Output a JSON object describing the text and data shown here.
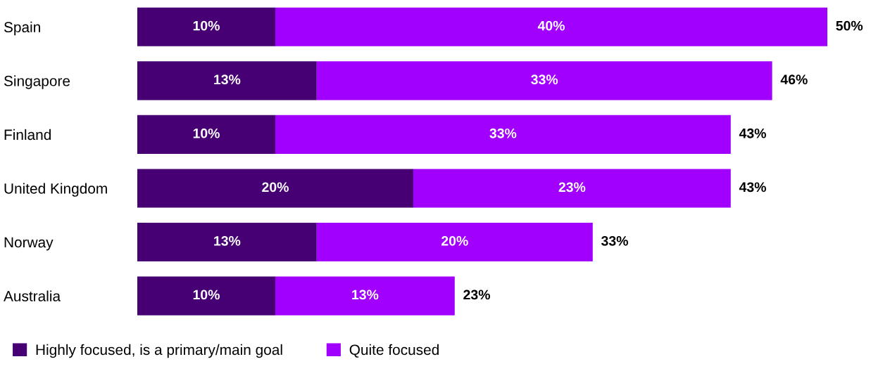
{
  "chart_data": {
    "type": "bar",
    "orientation": "horizontal",
    "stacked": true,
    "categories": [
      "Spain",
      "Singapore",
      "Finland",
      "United Kingdom",
      "Norway",
      "Australia"
    ],
    "series": [
      {
        "name": "Highly focused, is a primary/main goal",
        "color": "#460073",
        "values": [
          10,
          13,
          10,
          20,
          13,
          10
        ],
        "value_labels": [
          "10%",
          "13%",
          "10%",
          "20%",
          "13%",
          "10%"
        ]
      },
      {
        "name": "Quite focused",
        "color": "#a100ff",
        "values": [
          40,
          33,
          33,
          23,
          20,
          13
        ],
        "value_labels": [
          "40%",
          "33%",
          "33%",
          "23%",
          "20%",
          "13%"
        ]
      }
    ],
    "totals": [
      "50%",
      "46%",
      "43%",
      "43%",
      "33%",
      "23%"
    ],
    "tick_labels": "y",
    "legend": "bottom left",
    "grid": false
  }
}
